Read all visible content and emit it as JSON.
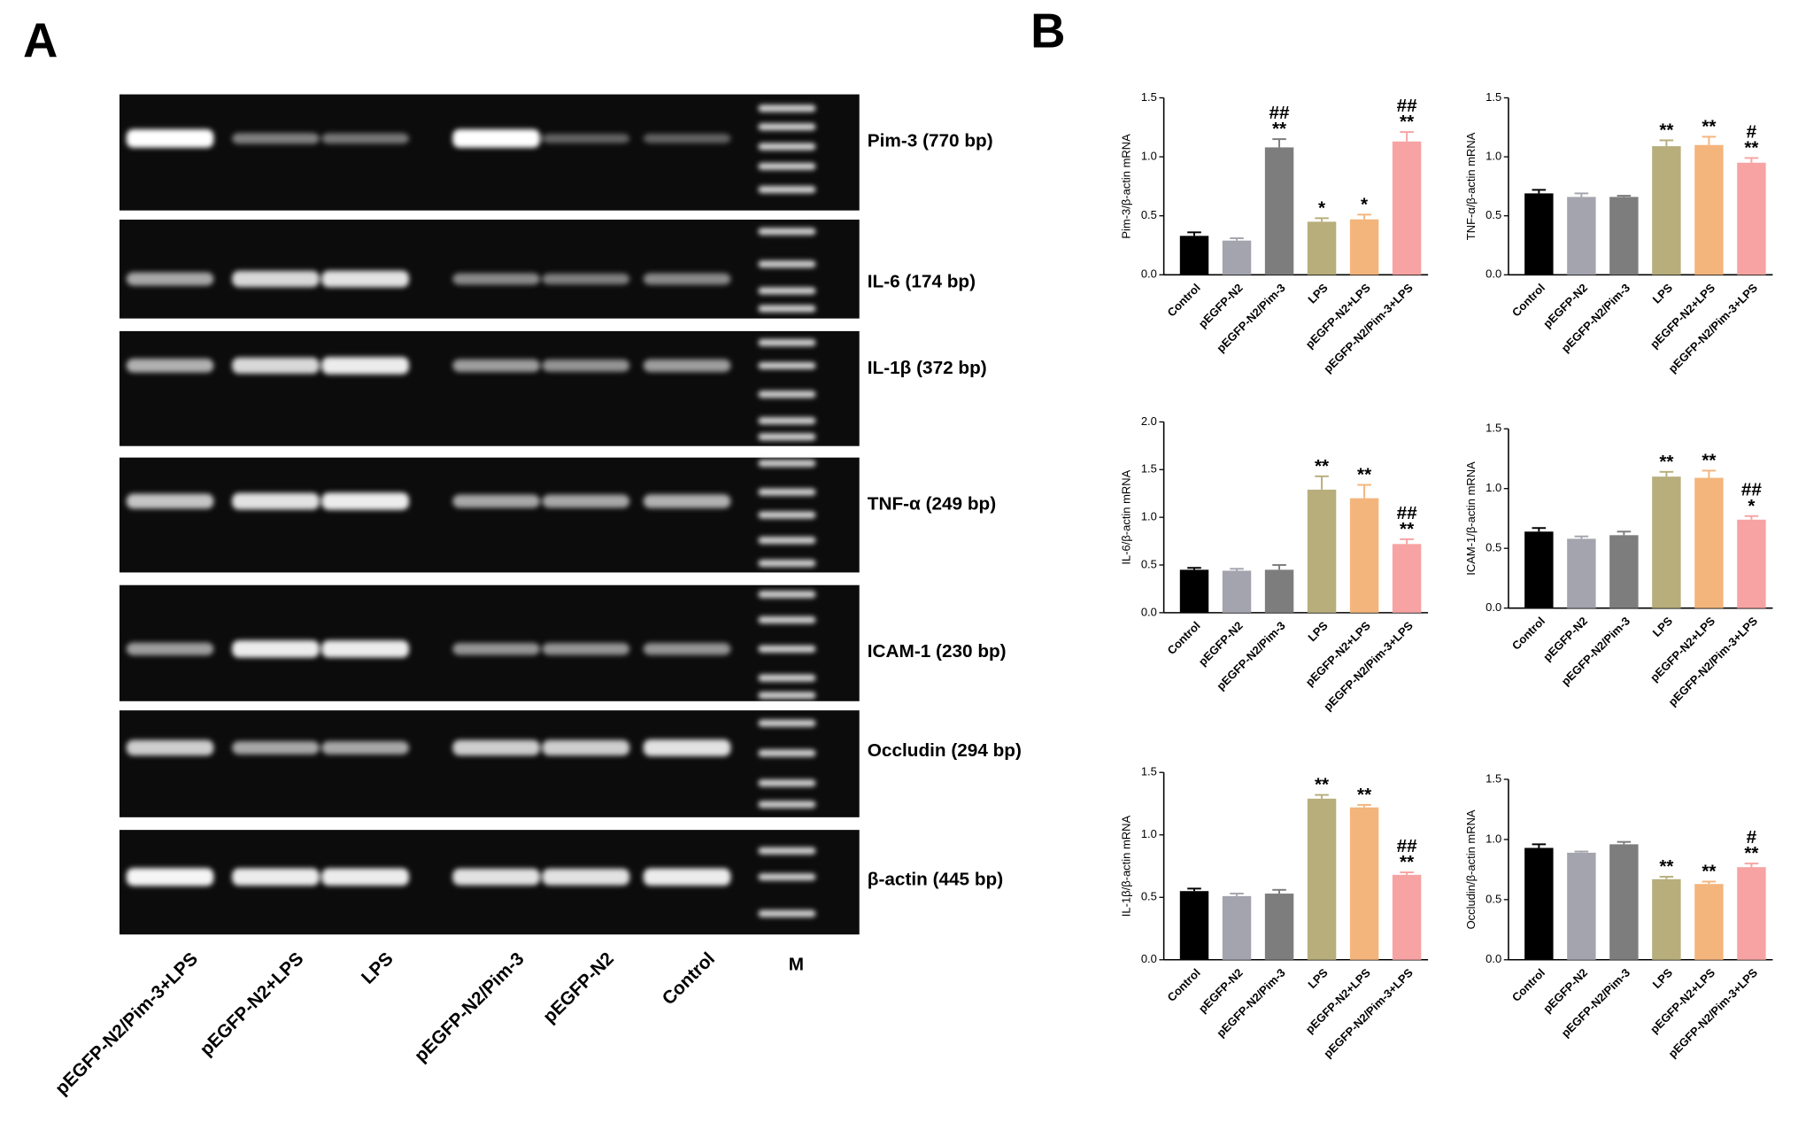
{
  "panel_a": {
    "label": "A",
    "bands": [
      "Pim-3 (770 bp)",
      "IL-6 (174 bp)",
      "IL-1β (372 bp)",
      "TNF-α (249 bp)",
      "ICAM-1 (230 bp)",
      "Occludin (294 bp)",
      "β-actin (445 bp)"
    ],
    "lanes": [
      "pEGFP-N2/Pim-3+LPS",
      "pEGFP-N2+LPS",
      "LPS",
      "pEGFP-N2/Pim-3",
      "pEGFP-N2",
      "Control",
      "M"
    ]
  },
  "panel_b_label": "B",
  "chart_data": [
    {
      "type": "bar",
      "y_label": "Pim-3/β-actin mRNA",
      "categories": [
        "Control",
        "pEGFP-N2",
        "pEGFP-N2/Pim-3",
        "LPS",
        "pEGFP-N2+LPS",
        "pEGFP-N2/Pim-3+LPS"
      ],
      "values": [
        0.33,
        0.29,
        1.08,
        0.45,
        0.47,
        1.13
      ],
      "errors": [
        0.03,
        0.02,
        0.07,
        0.03,
        0.04,
        0.08
      ],
      "colors": [
        "#000000",
        "#a4a4ae",
        "#7d7d7d",
        "#b7ae7c",
        "#f3b57c",
        "#f7a3a3"
      ],
      "annotations": [
        null,
        null,
        [
          "##",
          "**"
        ],
        [
          "*"
        ],
        [
          "*"
        ],
        [
          "##",
          "**"
        ]
      ],
      "ylim": [
        0,
        1.5
      ],
      "yticks": [
        {
          "value": 0,
          "label": "0.0"
        },
        0.5,
        {
          "value": 1,
          "label": "1.0"
        },
        1.5
      ]
    },
    {
      "type": "bar",
      "y_label": "TNF-α/β-actin mRNA",
      "categories": [
        "Control",
        "pEGFP-N2",
        "pEGFP-N2/Pim-3",
        "LPS",
        "pEGFP-N2+LPS",
        "pEGFP-N2/Pim-3+LPS"
      ],
      "values": [
        0.69,
        0.66,
        0.66,
        1.09,
        1.1,
        0.95
      ],
      "errors": [
        0.03,
        0.03,
        0.01,
        0.05,
        0.07,
        0.04
      ],
      "colors": [
        "#000000",
        "#a4a4ae",
        "#7d7d7d",
        "#b7ae7c",
        "#f3b57c",
        "#f7a3a3"
      ],
      "annotations": [
        null,
        null,
        null,
        [
          "**"
        ],
        [
          "**"
        ],
        [
          "#",
          "**"
        ]
      ],
      "ylim": [
        0,
        1.5
      ],
      "yticks": [
        {
          "value": 0,
          "label": "0.0"
        },
        0.5,
        {
          "value": 1,
          "label": "1.0"
        },
        1.5
      ]
    },
    {
      "type": "bar",
      "y_label": "IL-6/β-actin mRNA",
      "categories": [
        "Control",
        "pEGFP-N2",
        "pEGFP-N2/Pim-3",
        "LPS",
        "pEGFP-N2+LPS",
        "pEGFP-N2/Pim-3+LPS"
      ],
      "values": [
        0.45,
        0.44,
        0.45,
        1.29,
        1.2,
        0.72
      ],
      "errors": [
        0.02,
        0.02,
        0.05,
        0.14,
        0.14,
        0.05
      ],
      "colors": [
        "#000000",
        "#a4a4ae",
        "#7d7d7d",
        "#b7ae7c",
        "#f3b57c",
        "#f7a3a3"
      ],
      "annotations": [
        null,
        null,
        null,
        [
          "**"
        ],
        [
          "**"
        ],
        [
          "##",
          "**"
        ]
      ],
      "ylim": [
        0,
        2
      ],
      "yticks": [
        {
          "value": 0,
          "label": "0.0"
        },
        0.5,
        {
          "value": 1,
          "label": "1.0"
        },
        1.5,
        {
          "value": 2,
          "label": "2.0"
        }
      ]
    },
    {
      "type": "bar",
      "y_label": "ICAM-1/β-actin mRNA",
      "categories": [
        "Control",
        "pEGFP-N2",
        "pEGFP-N2/Pim-3",
        "LPS",
        "pEGFP-N2+LPS",
        "pEGFP-N2/Pim-3+LPS"
      ],
      "values": [
        0.64,
        0.58,
        0.61,
        1.1,
        1.09,
        0.74
      ],
      "errors": [
        0.03,
        0.02,
        0.03,
        0.04,
        0.06,
        0.03
      ],
      "colors": [
        "#000000",
        "#a4a4ae",
        "#7d7d7d",
        "#b7ae7c",
        "#f3b57c",
        "#f7a3a3"
      ],
      "annotations": [
        null,
        null,
        null,
        [
          "**"
        ],
        [
          "**"
        ],
        [
          "##",
          "*"
        ]
      ],
      "ylim": [
        0,
        1.5
      ],
      "yticks": [
        {
          "value": 0,
          "label": "0.0"
        },
        0.5,
        {
          "value": 1,
          "label": "1.0"
        },
        1.5
      ]
    },
    {
      "type": "bar",
      "y_label": "IL-1β/β-actin mRNA",
      "categories": [
        "Control",
        "pEGFP-N2",
        "pEGFP-N2/Pim-3",
        "LPS",
        "pEGFP-N2+LPS",
        "pEGFP-N2/Pim-3+LPS"
      ],
      "values": [
        0.55,
        0.51,
        0.53,
        1.29,
        1.22,
        0.68
      ],
      "errors": [
        0.02,
        0.02,
        0.03,
        0.03,
        0.02,
        0.02
      ],
      "colors": [
        "#000000",
        "#a4a4ae",
        "#7d7d7d",
        "#b7ae7c",
        "#f3b57c",
        "#f7a3a3"
      ],
      "annotations": [
        null,
        null,
        null,
        [
          "**"
        ],
        [
          "**"
        ],
        [
          "##",
          "**"
        ]
      ],
      "ylim": [
        0,
        1.5
      ],
      "yticks": [
        {
          "value": 0,
          "label": "0.0"
        },
        0.5,
        {
          "value": 1,
          "label": "1.0"
        },
        1.5
      ]
    },
    {
      "type": "bar",
      "y_label": "Occludin/β-actin mRNA",
      "categories": [
        "Control",
        "pEGFP-N2",
        "pEGFP-N2/Pim-3",
        "LPS",
        "pEGFP-N2+LPS",
        "pEGFP-N2/Pim-3+LPS"
      ],
      "values": [
        0.93,
        0.89,
        0.96,
        0.67,
        0.63,
        0.77
      ],
      "errors": [
        0.03,
        0.01,
        0.02,
        0.02,
        0.02,
        0.03
      ],
      "colors": [
        "#000000",
        "#a4a4ae",
        "#7d7d7d",
        "#b7ae7c",
        "#f3b57c",
        "#f7a3a3"
      ],
      "annotations": [
        null,
        null,
        null,
        [
          "**"
        ],
        [
          "**"
        ],
        [
          "#",
          "**"
        ]
      ],
      "ylim": [
        0,
        1.5
      ],
      "yticks": [
        {
          "value": 0,
          "label": "0.0"
        },
        0.5,
        {
          "value": 1,
          "label": "1.0"
        },
        1.5
      ]
    }
  ]
}
